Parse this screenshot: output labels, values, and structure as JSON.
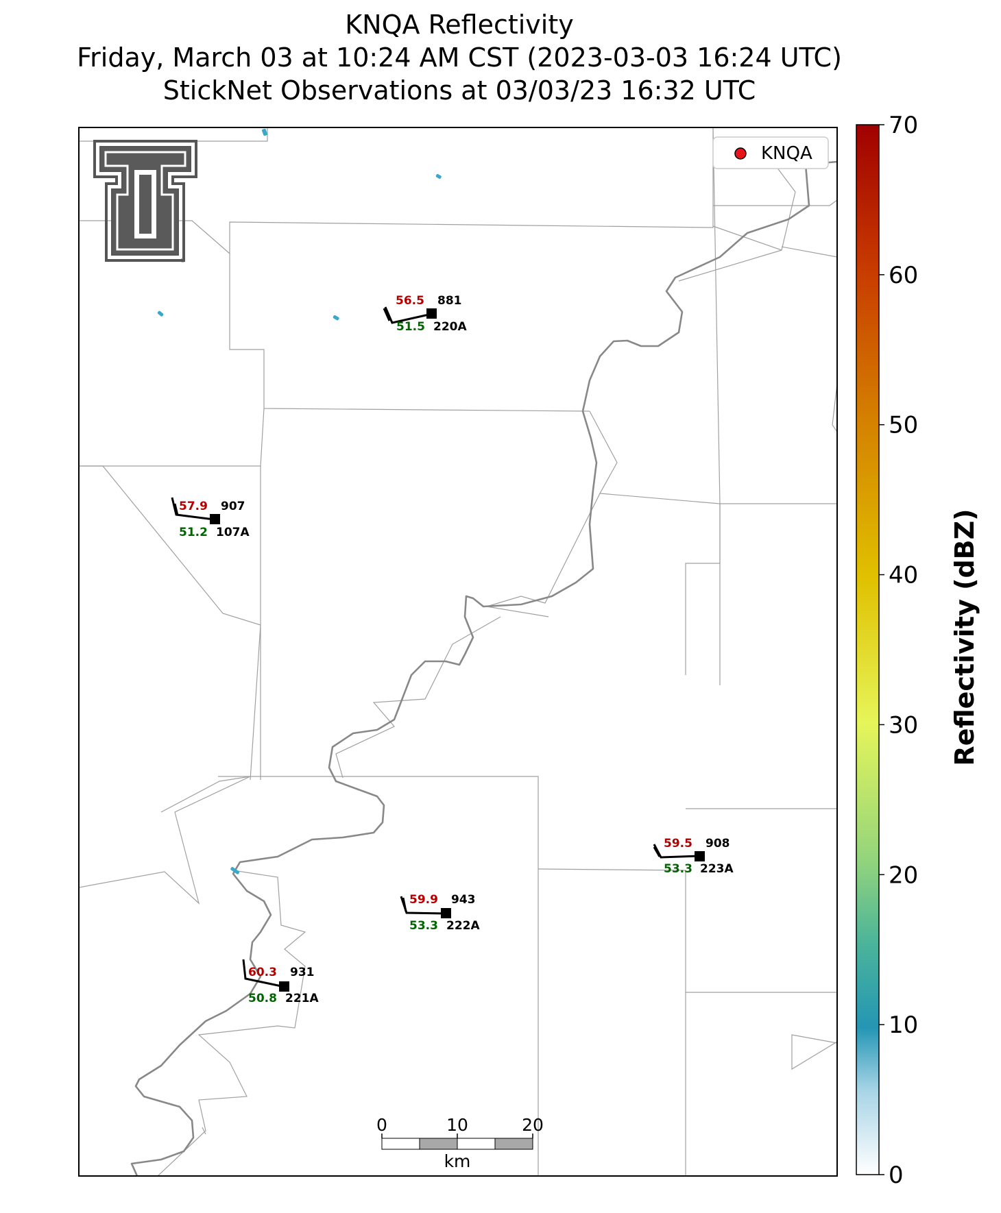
{
  "title": {
    "line1": "KNQA Reflectivity",
    "line2": "Friday, March 03 at 10:24 AM CST (2023-03-03 16:24 UTC)",
    "line3": "StickNet Observations at 03/03/23 16:32 UTC"
  },
  "legend": {
    "label": "KNQA",
    "marker_color": "#e8141a",
    "placement": "top-right"
  },
  "colorbar": {
    "label": "Reflectivity (dBZ)",
    "ticks": [
      "0",
      "10",
      "20",
      "30",
      "40",
      "50",
      "60",
      "70"
    ],
    "range": [
      0,
      70
    ]
  },
  "scalebar": {
    "ticks": [
      "0",
      "10",
      "20"
    ],
    "unit": "km"
  },
  "stations": [
    {
      "id": "881",
      "name": "220A",
      "temp": "56.5",
      "dew": "51.5"
    },
    {
      "id": "907",
      "name": "107A",
      "temp": "57.9",
      "dew": "51.2"
    },
    {
      "id": "908",
      "name": "223A",
      "temp": "59.5",
      "dew": "53.3"
    },
    {
      "id": "943",
      "name": "222A",
      "temp": "59.9",
      "dew": "53.3"
    },
    {
      "id": "931",
      "name": "221A",
      "temp": "60.3",
      "dew": "50.8"
    }
  ],
  "colors": {
    "temp": "#b30000",
    "dew": "#006400",
    "river": "#888888",
    "boundary": "#a0a0a0"
  },
  "logo": {
    "text": "TT",
    "description": "Texas Tech double-T logo"
  }
}
